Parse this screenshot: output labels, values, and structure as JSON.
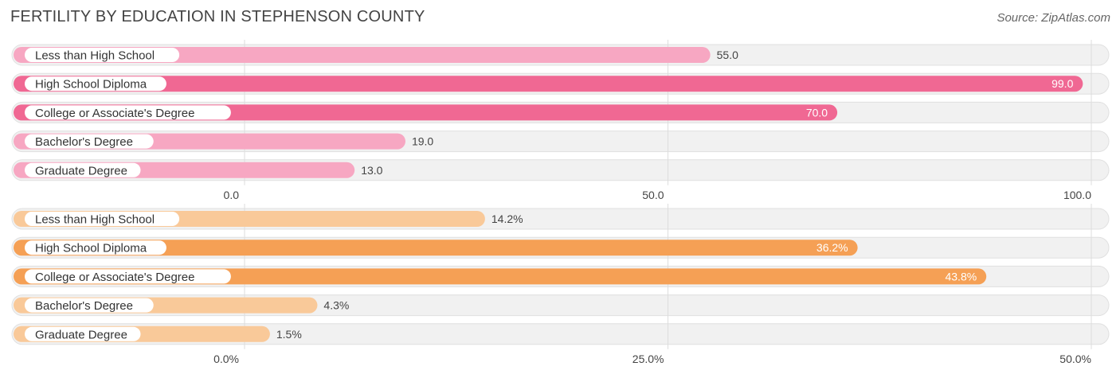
{
  "header": {
    "title": "FERTILITY BY EDUCATION IN STEPHENSON COUNTY",
    "source": "Source: ZipAtlas.com"
  },
  "colors": {
    "pink_strong": "#f06893",
    "pink_light": "#f7a7c2",
    "orange_strong": "#f5a055",
    "orange_light": "#f9c999"
  },
  "chart_data": [
    {
      "type": "bar",
      "orientation": "horizontal",
      "categories": [
        "Less than High School",
        "High School Diploma",
        "College or Associate's Degree",
        "Bachelor's Degree",
        "Graduate Degree"
      ],
      "values": [
        55.0,
        99.0,
        70.0,
        19.0,
        13.0
      ],
      "value_labels": [
        "55.0",
        "99.0",
        "70.0",
        "19.0",
        "13.0"
      ],
      "xlim": [
        0,
        100
      ],
      "ticks": [
        0,
        50,
        100
      ],
      "tick_labels": [
        "0.0",
        "50.0",
        "100.0"
      ],
      "palette": "pink"
    },
    {
      "type": "bar",
      "orientation": "horizontal",
      "categories": [
        "Less than High School",
        "High School Diploma",
        "College or Associate's Degree",
        "Bachelor's Degree",
        "Graduate Degree"
      ],
      "values": [
        14.2,
        36.2,
        43.8,
        4.3,
        1.5
      ],
      "value_labels": [
        "14.2%",
        "36.2%",
        "43.8%",
        "4.3%",
        "1.5%"
      ],
      "xlim": [
        0,
        50
      ],
      "ticks": [
        0,
        25,
        50
      ],
      "tick_labels": [
        "0.0%",
        "25.0%",
        "50.0%"
      ],
      "palette": "orange"
    }
  ]
}
